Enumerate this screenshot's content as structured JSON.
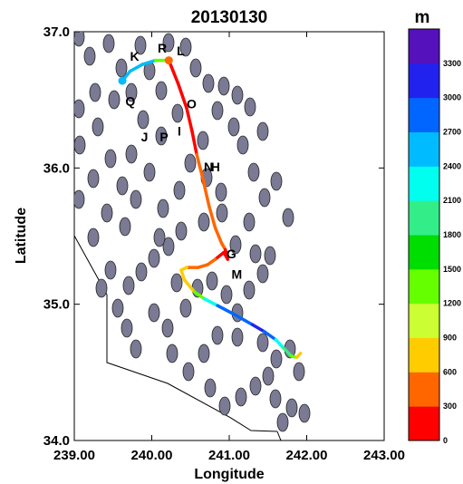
{
  "chart_data": {
    "type": "line",
    "title": "20130130",
    "xlabel": "Longitude",
    "ylabel": "Latitude",
    "xlim": [
      239.0,
      243.0
    ],
    "ylim": [
      34.0,
      37.0
    ],
    "x_ticks": [
      "239.00",
      "240.00",
      "241.00",
      "242.00",
      "243.00"
    ],
    "y_ticks": [
      "34.0",
      "35.0",
      "36.0",
      "37.0"
    ],
    "colorbar": {
      "unit": "m",
      "ticks": [
        "0",
        "300",
        "600",
        "900",
        "1200",
        "1500",
        "1800",
        "2100",
        "2400",
        "2700",
        "3000",
        "3300"
      ],
      "range": [
        0,
        3600
      ],
      "colors": [
        "#ff0000",
        "#ff6600",
        "#ffcc00",
        "#ccff33",
        "#66ff00",
        "#00dd00",
        "#33ee88",
        "#00ffee",
        "#00bbff",
        "#0066ff",
        "#2222ee",
        "#5511bb"
      ]
    },
    "flight_track": [
      {
        "x": 239.62,
        "y": 36.64,
        "alt": 2500
      },
      {
        "x": 239.72,
        "y": 36.71,
        "alt": 2500
      },
      {
        "x": 239.88,
        "y": 36.76,
        "alt": 2500
      },
      {
        "x": 240.05,
        "y": 36.79,
        "alt": 2500
      },
      {
        "x": 240.2,
        "y": 36.79,
        "alt": 300
      },
      {
        "x": 240.22,
        "y": 36.79,
        "alt": 100
      },
      {
        "x": 240.34,
        "y": 36.62,
        "alt": 100
      },
      {
        "x": 240.45,
        "y": 36.44,
        "alt": 150
      },
      {
        "x": 240.52,
        "y": 36.27,
        "alt": 200
      },
      {
        "x": 240.58,
        "y": 36.1,
        "alt": 250
      },
      {
        "x": 240.66,
        "y": 35.92,
        "alt": 350
      },
      {
        "x": 240.74,
        "y": 35.72,
        "alt": 400
      },
      {
        "x": 240.82,
        "y": 35.56,
        "alt": 450
      },
      {
        "x": 240.9,
        "y": 35.45,
        "alt": 400
      },
      {
        "x": 240.95,
        "y": 35.4,
        "alt": 300
      },
      {
        "x": 240.98,
        "y": 35.33,
        "alt": 100
      },
      {
        "x": 240.93,
        "y": 35.38,
        "alt": 80
      },
      {
        "x": 240.82,
        "y": 35.33,
        "alt": 250
      },
      {
        "x": 240.72,
        "y": 35.29,
        "alt": 350
      },
      {
        "x": 240.6,
        "y": 35.27,
        "alt": 450
      },
      {
        "x": 240.45,
        "y": 35.27,
        "alt": 600
      },
      {
        "x": 240.38,
        "y": 35.25,
        "alt": 750
      },
      {
        "x": 240.42,
        "y": 35.18,
        "alt": 800
      },
      {
        "x": 240.55,
        "y": 35.09,
        "alt": 800
      },
      {
        "x": 240.68,
        "y": 35.04,
        "alt": 1800
      },
      {
        "x": 240.85,
        "y": 34.99,
        "alt": 2700
      },
      {
        "x": 241.05,
        "y": 34.93,
        "alt": 2800
      },
      {
        "x": 241.3,
        "y": 34.85,
        "alt": 3000
      },
      {
        "x": 241.45,
        "y": 34.8,
        "alt": 3000
      },
      {
        "x": 241.6,
        "y": 34.74,
        "alt": 2600
      },
      {
        "x": 241.7,
        "y": 34.68,
        "alt": 2000
      },
      {
        "x": 241.8,
        "y": 34.62,
        "alt": 1700
      },
      {
        "x": 241.87,
        "y": 34.61,
        "alt": 800
      },
      {
        "x": 241.92,
        "y": 34.64,
        "alt": 700
      }
    ],
    "waypoints": [
      {
        "label": "K",
        "x": 239.72,
        "y": 36.76,
        "color": "#00bbff"
      },
      {
        "label": "R",
        "x": 240.1,
        "y": 36.82,
        "color": "#ff6600"
      },
      {
        "label": "L",
        "x": 240.3,
        "y": 36.8,
        "color": "#ff0000"
      },
      {
        "label": "Q",
        "x": 239.66,
        "y": 36.51,
        "color": "#ff0000"
      },
      {
        "label": "O",
        "x": 240.45,
        "y": 36.49,
        "color": "#ff0000"
      },
      {
        "label": "J",
        "x": 239.92,
        "y": 36.25,
        "color": "#ff0000"
      },
      {
        "label": "P",
        "x": 240.15,
        "y": 36.25,
        "color": "#00bbff"
      },
      {
        "label": "I",
        "x": 240.38,
        "y": 36.29,
        "color": "#00bbff"
      },
      {
        "label": "N",
        "x": 240.72,
        "y": 36.03,
        "color": "#ff0000"
      },
      {
        "label": "H",
        "x": 240.88,
        "y": 36.03,
        "color": "#00bbff"
      },
      {
        "label": "G",
        "x": 241.08,
        "y": 35.39,
        "color": "#ff6600"
      },
      {
        "label": "M",
        "x": 241.1,
        "y": 35.24,
        "color": "#00bbff"
      }
    ]
  }
}
